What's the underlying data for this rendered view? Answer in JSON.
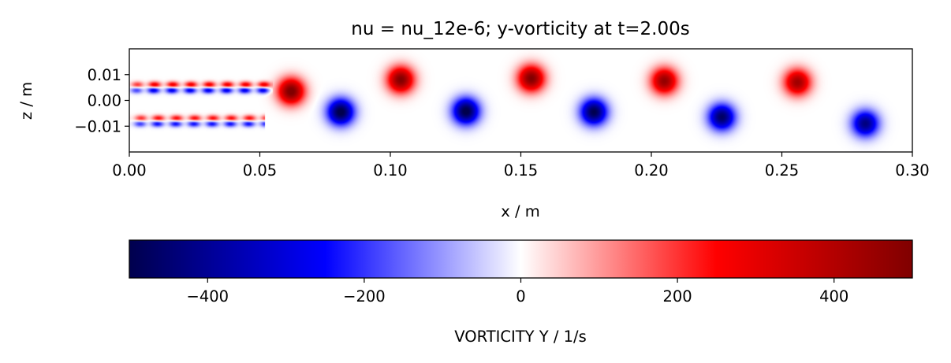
{
  "chart_data": {
    "type": "heatmap",
    "title": "nu = nu_12e-6; y-vorticity at t=2.00s",
    "xlabel": "x / m",
    "ylabel": "z / m",
    "xlim": [
      0.0,
      0.3
    ],
    "ylim": [
      -0.02,
      0.02
    ],
    "x_ticks": [
      {
        "value": 0.0,
        "label": "0.00"
      },
      {
        "value": 0.05,
        "label": "0.05"
      },
      {
        "value": 0.1,
        "label": "0.10"
      },
      {
        "value": 0.15,
        "label": "0.15"
      },
      {
        "value": 0.2,
        "label": "0.20"
      },
      {
        "value": 0.25,
        "label": "0.25"
      },
      {
        "value": 0.3,
        "label": "0.30"
      }
    ],
    "y_ticks": [
      {
        "value": 0.01,
        "label": "0.01"
      },
      {
        "value": 0.0,
        "label": "0.00"
      },
      {
        "value": -0.01,
        "label": "−0.01"
      }
    ],
    "grid": false,
    "colorbar": {
      "label": "VORTICITY Y / 1/s",
      "range": [
        -500,
        500
      ],
      "colormap": "seismic",
      "ticks": [
        {
          "value": -400,
          "label": "−400"
        },
        {
          "value": -200,
          "label": "−200"
        },
        {
          "value": 0,
          "label": "0"
        },
        {
          "value": 200,
          "label": "200"
        },
        {
          "value": 400,
          "label": "400"
        }
      ],
      "colors": [
        "#00004d",
        "#0000ff",
        "#ffffff",
        "#ff0000",
        "#800000"
      ]
    },
    "vortices": [
      {
        "x": 0.062,
        "z": 0.0035,
        "sign": 1,
        "peak": 520
      },
      {
        "x": 0.081,
        "z": -0.0045,
        "sign": -1,
        "peak": 520
      },
      {
        "x": 0.104,
        "z": 0.008,
        "sign": 1,
        "peak": 500
      },
      {
        "x": 0.129,
        "z": -0.0042,
        "sign": -1,
        "peak": 520
      },
      {
        "x": 0.154,
        "z": 0.0085,
        "sign": 1,
        "peak": 500
      },
      {
        "x": 0.178,
        "z": -0.0045,
        "sign": -1,
        "peak": 500
      },
      {
        "x": 0.205,
        "z": 0.0075,
        "sign": 1,
        "peak": 460
      },
      {
        "x": 0.227,
        "z": -0.0065,
        "sign": -1,
        "peak": 470
      },
      {
        "x": 0.256,
        "z": 0.007,
        "sign": 1,
        "peak": 440
      },
      {
        "x": 0.282,
        "z": -0.009,
        "sign": -1,
        "peak": 430
      }
    ],
    "shear_layers": [
      {
        "x_start": 0.0,
        "x_end": 0.055,
        "z": 0.006,
        "sign": 1,
        "peak": 300
      },
      {
        "x_start": 0.0,
        "x_end": 0.055,
        "z": 0.004,
        "sign": -1,
        "peak": 300
      },
      {
        "x_start": 0.0,
        "x_end": 0.052,
        "z": -0.007,
        "sign": 1,
        "peak": 260
      },
      {
        "x_start": 0.0,
        "x_end": 0.052,
        "z": -0.009,
        "sign": -1,
        "peak": 260
      }
    ]
  }
}
